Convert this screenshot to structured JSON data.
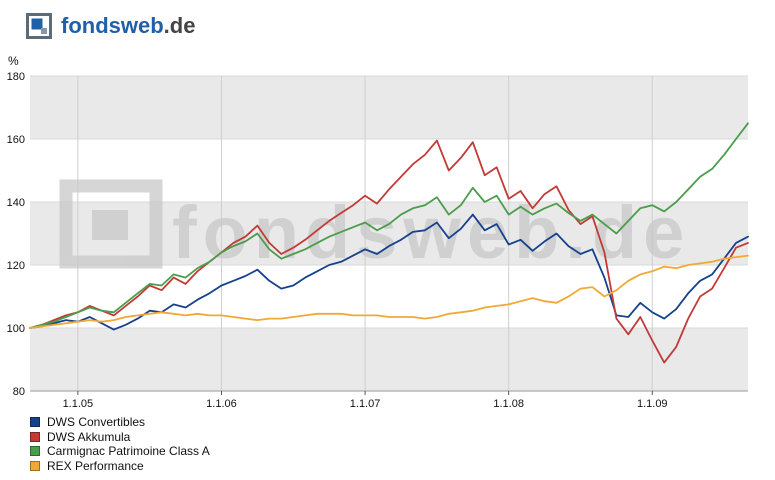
{
  "header": {
    "brand": "fondsweb",
    "tld": ".de",
    "brand_color": "#2060a8",
    "tld_color": "#444444"
  },
  "watermark": {
    "text": "fondsweb.de",
    "color": "#c6c6c6"
  },
  "chart_data": {
    "type": "line",
    "title": "",
    "xlabel": "",
    "ylabel": "%",
    "ylim": [
      80,
      180
    ],
    "yticks": [
      180,
      160,
      140,
      120,
      100,
      80
    ],
    "band_colors": [
      "#e9e9e9",
      "#ffffff"
    ],
    "grid": "horizontal-bands",
    "legend_position": "bottom-left",
    "x_start": "2004-09",
    "x_end": "2009-09",
    "x_interval": "monthly",
    "n_points": 61,
    "x_tick_labels": [
      "1.1.05",
      "1.1.06",
      "1.1.07",
      "1.1.08",
      "1.1.09"
    ],
    "x_tick_indices": [
      4,
      16,
      28,
      40,
      52
    ],
    "series": [
      {
        "name": "DWS Convertibles",
        "color": "#16418c",
        "values": [
          100,
          100.5,
          101.5,
          102.5,
          102,
          103.5,
          101.5,
          99.5,
          101,
          103,
          105.5,
          105,
          107.5,
          106.5,
          109,
          111,
          113.5,
          115,
          116.5,
          118.5,
          115,
          112.5,
          113.5,
          116,
          118,
          120,
          121,
          123,
          125,
          123.5,
          126,
          128,
          130.5,
          131,
          133.5,
          128.5,
          131.5,
          136,
          131,
          133,
          126.5,
          128,
          124.5,
          127.5,
          130,
          126,
          123.5,
          125,
          116,
          104,
          103.5,
          108,
          105,
          103,
          106,
          111,
          115,
          117,
          122,
          127,
          129
        ]
      },
      {
        "name": "DWS Akkumula",
        "color": "#c23a36",
        "values": [
          100,
          101,
          102.5,
          104,
          105,
          107,
          105.5,
          104,
          107,
          110,
          113.5,
          112,
          116,
          114,
          118,
          121,
          124,
          127,
          129,
          132.5,
          127,
          123.5,
          125.5,
          128,
          131,
          134,
          136.5,
          139,
          142,
          139.5,
          144,
          148,
          152,
          155,
          159.5,
          150,
          154,
          159,
          148.5,
          151,
          141,
          143.5,
          138,
          142.5,
          145,
          137.5,
          133,
          135.5,
          124,
          103,
          98,
          103.5,
          96,
          89,
          94,
          103,
          110,
          112.5,
          119,
          125.5,
          127
        ]
      },
      {
        "name": "Carmignac Patrimoine Class A",
        "color": "#4a9d4a",
        "values": [
          100,
          101,
          102,
          103.5,
          105,
          106.5,
          105.5,
          105,
          108,
          111,
          114,
          113.5,
          117,
          116,
          119,
          121,
          124,
          126,
          127.5,
          130,
          125,
          122,
          123.5,
          125,
          127,
          129,
          130.5,
          132,
          133.5,
          131,
          133,
          136,
          138,
          139,
          141.5,
          136,
          139,
          144.5,
          140,
          142,
          136,
          138.5,
          136,
          138,
          139.5,
          136.5,
          134,
          136,
          133,
          130,
          134,
          138,
          139,
          137,
          140,
          144,
          148,
          150.5,
          155,
          160,
          165
        ]
      },
      {
        "name": "REX Performance",
        "color": "#f0a935",
        "values": [
          100,
          100.5,
          101,
          101.5,
          102,
          102.5,
          102,
          102.5,
          103.5,
          104,
          104.5,
          105,
          104.5,
          104,
          104.5,
          104,
          104,
          103.5,
          103,
          102.5,
          103,
          103,
          103.5,
          104,
          104.5,
          104.5,
          104.5,
          104,
          104,
          104,
          103.5,
          103.5,
          103.5,
          103,
          103.5,
          104.5,
          105,
          105.5,
          106.5,
          107,
          107.5,
          108.5,
          109.5,
          108.5,
          108,
          110,
          112.5,
          113,
          110,
          112,
          115,
          117,
          118,
          119.5,
          119,
          120,
          120.5,
          121,
          122,
          122.5,
          123
        ]
      }
    ]
  }
}
